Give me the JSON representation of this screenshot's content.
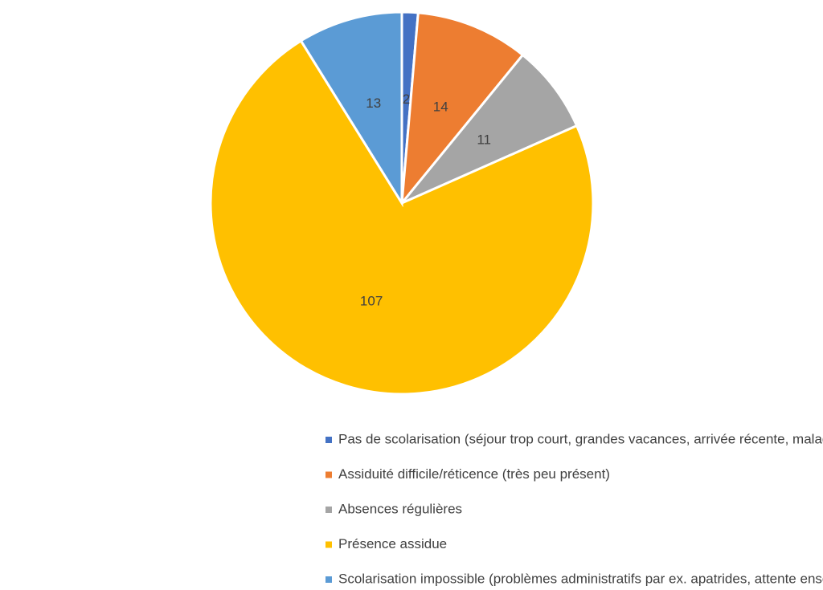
{
  "chart_data": {
    "type": "pie",
    "categories": [
      "Pas de scolarisation (séjour trop court, grandes vacances, arrivée récente, maladie)",
      "Assiduité difficile/réticence (très peu présent)",
      "Absences régulières",
      "Présence assidue",
      "Scolarisation impossible (problèmes administratifs par ex. apatrides, attente enseignement spécialisé)"
    ],
    "values": [
      2,
      14,
      11,
      107,
      13
    ],
    "colors": [
      "#4472c4",
      "#ed7d31",
      "#a5a5a5",
      "#ffc000",
      "#5b9bd5"
    ],
    "legend": "bottom"
  }
}
